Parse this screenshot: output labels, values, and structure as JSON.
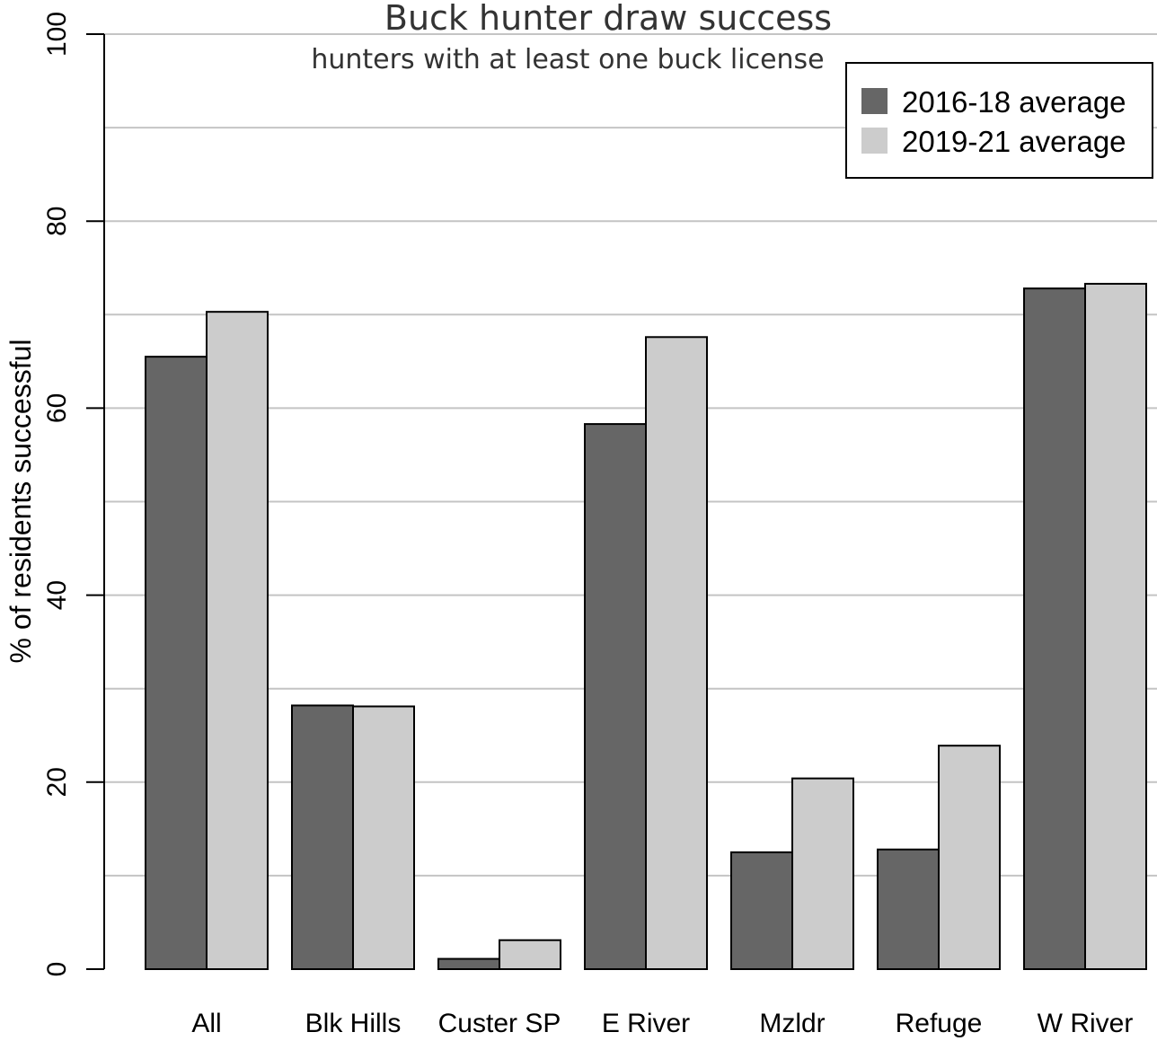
{
  "chart_data": {
    "type": "bar",
    "title": "Buck hunter draw success",
    "subtitle": "hunters with at least one buck license",
    "xlabel": "",
    "ylabel": "% of residents successful",
    "ylim": [
      0,
      100
    ],
    "yticks": [
      0,
      20,
      40,
      60,
      80,
      100
    ],
    "grid": true,
    "legend_position": "top-right",
    "categories": [
      "All",
      "Blk Hills",
      "Custer SP",
      "E River",
      "Mzldr",
      "Refuge",
      "W River"
    ],
    "series": [
      {
        "name": "2016-18 average",
        "color": "#666666",
        "values": [
          65.5,
          28.2,
          1.1,
          58.3,
          12.5,
          12.8,
          72.8
        ]
      },
      {
        "name": "2019-21 average",
        "color": "#cccccc",
        "values": [
          70.3,
          28.1,
          3.1,
          67.6,
          20.4,
          23.9,
          73.3
        ]
      }
    ]
  }
}
